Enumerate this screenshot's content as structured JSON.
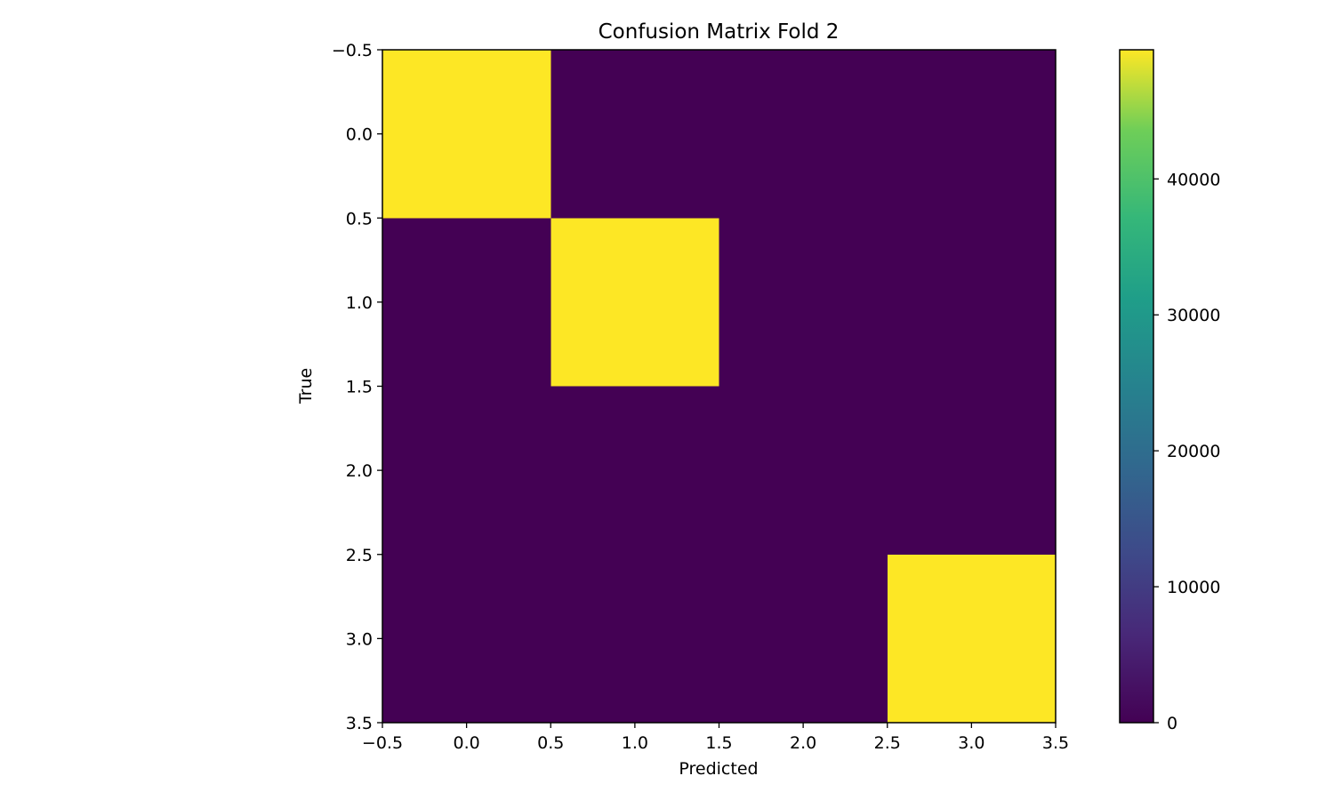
{
  "chart_data": {
    "type": "heatmap",
    "title": "Confusion Matrix Fold 2",
    "xlabel": "Predicted",
    "ylabel": "True",
    "xlim": [
      -0.5,
      3.5
    ],
    "ylim": [
      3.5,
      -0.5
    ],
    "x_ticks": [
      -0.5,
      0.0,
      0.5,
      1.0,
      1.5,
      2.0,
      2.5,
      3.0,
      3.5
    ],
    "x_tick_labels": [
      "−0.5",
      "0.0",
      "0.5",
      "1.0",
      "1.5",
      "2.0",
      "2.5",
      "3.0",
      "3.5"
    ],
    "y_ticks": [
      -0.5,
      0.0,
      0.5,
      1.0,
      1.5,
      2.0,
      2.5,
      3.0,
      3.5
    ],
    "y_tick_labels": [
      "−0.5",
      "0.0",
      "0.5",
      "1.0",
      "1.5",
      "2.0",
      "2.5",
      "3.0",
      "3.5"
    ],
    "matrix": [
      [
        49500,
        0,
        0,
        0
      ],
      [
        0,
        49500,
        0,
        0
      ],
      [
        0,
        0,
        0,
        0
      ],
      [
        0,
        0,
        0,
        49500
      ]
    ],
    "colormap": "viridis",
    "colorbar": {
      "min": 0,
      "max": 49500,
      "ticks": [
        0,
        10000,
        20000,
        30000,
        40000
      ],
      "tick_labels": [
        "0",
        "10000",
        "20000",
        "30000",
        "40000"
      ]
    },
    "grid": false,
    "colors": {
      "high": "#fde725",
      "low": "#440154"
    }
  }
}
